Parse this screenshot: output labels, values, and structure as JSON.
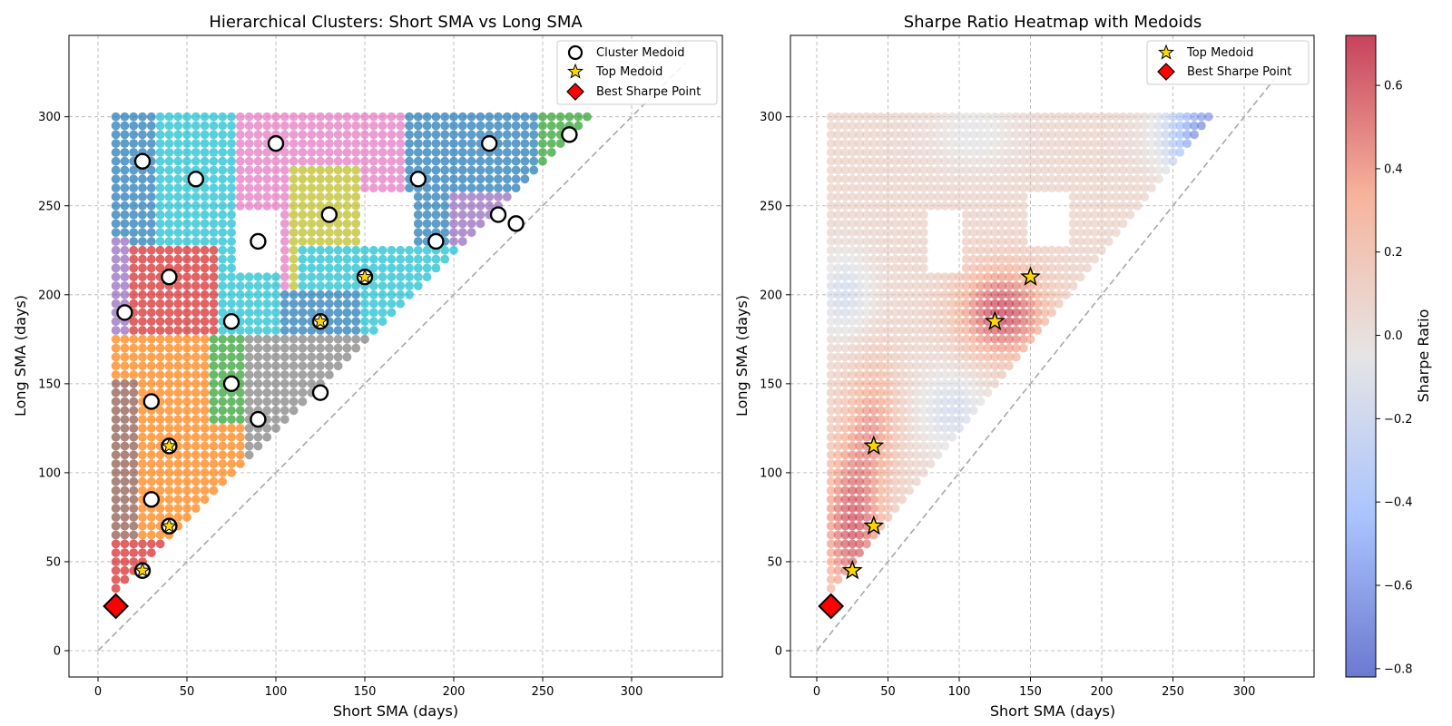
{
  "chart_data": [
    {
      "type": "scatter",
      "title": "Hierarchical Clusters: Short SMA vs Long SMA",
      "xlabel": "Short SMA (days)",
      "ylabel": "Long SMA (days)",
      "xlim": [
        -16,
        346
      ],
      "ylim": [
        -16,
        346
      ],
      "xticks": [
        0,
        50,
        100,
        150,
        200,
        250,
        300
      ],
      "yticks": [
        0,
        50,
        100,
        150,
        200,
        250,
        300
      ],
      "grid": true,
      "legend_position": "upper right",
      "legend": [
        "Cluster Medoid",
        "Top Medoid",
        "Best Sharpe Point"
      ],
      "grid_spacing_days": 5,
      "cluster_colors": [
        "#1f77b4",
        "#ff7f0e",
        "#2ca02c",
        "#d62728",
        "#9467bd",
        "#8c564b",
        "#e377c2",
        "#7f7f7f",
        "#bcbd22",
        "#17becf"
      ],
      "cluster_medoids": [
        [
          25,
          275
        ],
        [
          55,
          265
        ],
        [
          100,
          285
        ],
        [
          180,
          265
        ],
        [
          220,
          285
        ],
        [
          265,
          290
        ],
        [
          130,
          245
        ],
        [
          90,
          230
        ],
        [
          190,
          230
        ],
        [
          225,
          245
        ],
        [
          235,
          240
        ],
        [
          40,
          210
        ],
        [
          15,
          190
        ],
        [
          75,
          185
        ],
        [
          75,
          150
        ],
        [
          30,
          140
        ],
        [
          125,
          145
        ],
        [
          90,
          130
        ],
        [
          30,
          85
        ]
      ],
      "top_medoids": [
        [
          150,
          210
        ],
        [
          125,
          185
        ],
        [
          40,
          115
        ],
        [
          40,
          70
        ],
        [
          25,
          45
        ]
      ],
      "best_sharpe_point": [
        10,
        25
      ],
      "diagonal": [
        [
          0,
          0
        ],
        [
          330,
          330
        ]
      ]
    },
    {
      "type": "heatmap",
      "title": "Sharpe Ratio Heatmap with Medoids",
      "xlabel": "Short SMA (days)",
      "ylabel": "Long SMA (days)",
      "xlim": [
        -16,
        346
      ],
      "ylim": [
        -16,
        346
      ],
      "xticks": [
        0,
        50,
        100,
        150,
        200,
        250,
        300
      ],
      "yticks": [
        0,
        50,
        100,
        150,
        200,
        250,
        300
      ],
      "grid": true,
      "legend_position": "upper right",
      "legend": [
        "Top Medoid",
        "Best Sharpe Point"
      ],
      "colormap": "coolwarm",
      "colorbar_label": "Sharpe Ratio",
      "colorbar_range": [
        -0.82,
        0.72
      ],
      "colorbar_ticks": [
        "0.6",
        "0.4",
        "0.2",
        "0.0",
        "−0.2",
        "−0.4",
        "−0.6",
        "−0.8"
      ],
      "top_medoids": [
        [
          150,
          210
        ],
        [
          125,
          185
        ],
        [
          40,
          115
        ],
        [
          40,
          70
        ],
        [
          25,
          45
        ]
      ],
      "best_sharpe_point": [
        10,
        25
      ],
      "diagonal": [
        [
          0,
          0
        ],
        [
          330,
          330
        ]
      ]
    }
  ]
}
